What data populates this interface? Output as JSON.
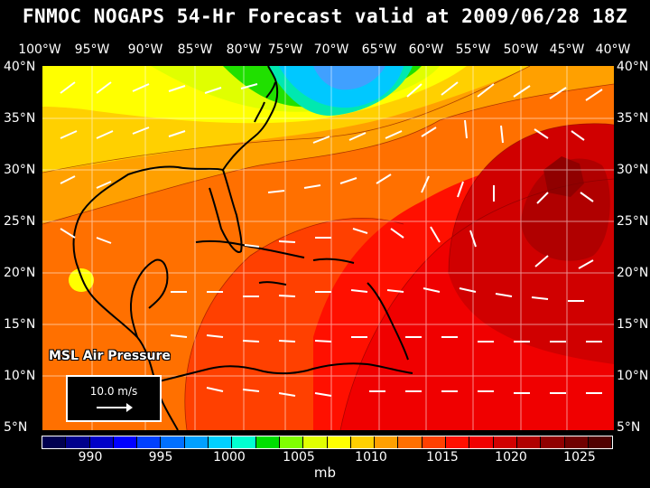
{
  "title": "FNMOC NOGAPS 54-Hr Forecast valid at 2009/06/28 18Z",
  "lon_labels": [
    "100°W",
    "95°W",
    "90°W",
    "85°W",
    "80°W",
    "75°W",
    "70°W",
    "65°W",
    "60°W",
    "55°W",
    "50°W",
    "45°W",
    "40°W"
  ],
  "lat_labels": [
    "40°N",
    "35°N",
    "30°N",
    "25°N",
    "20°N",
    "15°N",
    "10°N",
    "5°N"
  ],
  "field_label": "MSL Air Pressure",
  "scale_label": "10.0 m/s",
  "colorbar": {
    "labels": [
      "990",
      "995",
      "1000",
      "1005",
      "1010",
      "1015",
      "1020",
      "1025"
    ],
    "unit": "mb",
    "colors": [
      "#000050",
      "#00008c",
      "#0000c8",
      "#0000ff",
      "#0040ff",
      "#0070ff",
      "#00a0ff",
      "#00d0ff",
      "#00ffd0",
      "#00e000",
      "#80ff00",
      "#e0ff00",
      "#ffff00",
      "#ffd000",
      "#ffa000",
      "#ff7000",
      "#ff4000",
      "#ff1000",
      "#f00000",
      "#d00000",
      "#b00000",
      "#900000",
      "#700000",
      "#500000"
    ]
  },
  "colors": {
    "high": "#b00000",
    "red": "#f00000",
    "orangered": "#ff3000",
    "orange": "#ff7000",
    "yellow_orange": "#ffb000",
    "yellow": "#ffff00",
    "green": "#20e000",
    "teal": "#00e8b0",
    "cyan": "#00c8ff",
    "blue": "#40a0ff"
  }
}
